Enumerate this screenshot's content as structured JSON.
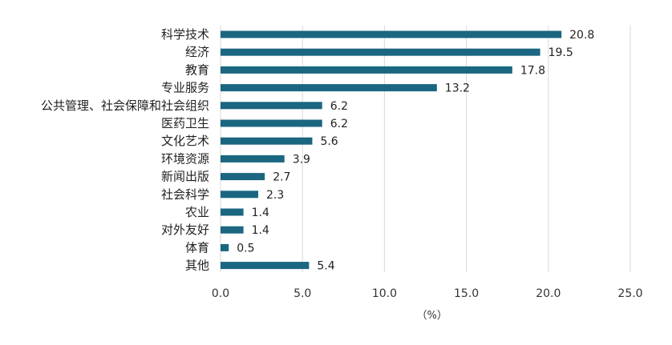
{
  "chart_data": {
    "type": "bar",
    "orientation": "horizontal",
    "categories": [
      "科学技术",
      "经济",
      "教育",
      "专业服务",
      "公共管理、社会保障和社会组织",
      "医药卫生",
      "文化艺术",
      "环境资源",
      "新闻出版",
      "社会科学",
      "农业",
      "对外友好",
      "体育",
      "其他"
    ],
    "values": [
      20.8,
      19.5,
      17.8,
      13.2,
      6.2,
      6.2,
      5.6,
      3.9,
      2.7,
      2.3,
      1.4,
      1.4,
      0.5,
      5.4
    ],
    "value_labels": [
      "20.8",
      "19.5",
      "17.8",
      "13.2",
      "6.2",
      "6.2",
      "5.6",
      "3.9",
      "2.7",
      "2.3",
      "1.4",
      "1.4",
      "0.5",
      "5.4"
    ],
    "x_ticks": [
      "0.0",
      "5.0",
      "10.0",
      "15.0",
      "20.0",
      "25.0"
    ],
    "xlim": [
      0,
      25
    ],
    "xlabel": "（%）",
    "grid": true,
    "legend": "none",
    "bar_color": "#1b6680",
    "grid_color": "#d9d9d9"
  }
}
